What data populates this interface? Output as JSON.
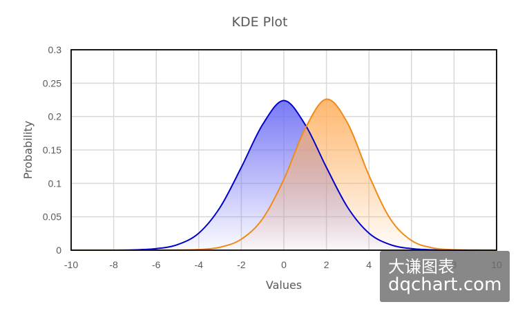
{
  "chart_data": {
    "type": "area",
    "title": "KDE Plot",
    "xlabel": "Values",
    "ylabel": "Probability",
    "xlim": [
      -10,
      10
    ],
    "ylim": [
      0,
      0.3
    ],
    "x_ticks": [
      "-10",
      "-8",
      "-6",
      "-4",
      "-2",
      "0",
      "2",
      "4",
      "6",
      "8",
      "10"
    ],
    "y_ticks": [
      "0",
      "0.05",
      "0.1",
      "0.15",
      "0.2",
      "0.25",
      "0.3"
    ],
    "grid": true,
    "legend": "none",
    "series": [
      {
        "color": "#0000cc",
        "fill_color": "#6b6bf5",
        "x": [
          -10,
          -9,
          -8,
          -7,
          -6,
          -5,
          -4,
          -3,
          -2,
          -1,
          0,
          1,
          2,
          3,
          4,
          5,
          6,
          7,
          8,
          9,
          10
        ],
        "y": [
          0.0,
          0.0,
          0.0,
          0.0005,
          0.0023,
          0.0083,
          0.0255,
          0.064,
          0.124,
          0.188,
          0.224,
          0.188,
          0.124,
          0.064,
          0.0255,
          0.0083,
          0.0023,
          0.0005,
          0.0,
          0.0,
          0.0
        ]
      },
      {
        "color": "#f08a18",
        "fill_color": "#ffb060",
        "x": [
          -10,
          -9,
          -8,
          -7,
          -6,
          -5,
          -4,
          -3,
          -2,
          -1,
          0,
          1,
          2,
          3,
          4,
          5,
          6,
          7,
          8,
          9,
          10
        ],
        "y": [
          0.0,
          0.0,
          0.0,
          0.0,
          0.0,
          0.0002,
          0.001,
          0.0044,
          0.0165,
          0.047,
          0.106,
          0.182,
          0.226,
          0.19,
          0.112,
          0.047,
          0.0145,
          0.0034,
          0.0006,
          0.0001,
          0.0
        ]
      }
    ]
  },
  "watermark": {
    "line1": "大谦图表",
    "line2": "dqchart.com"
  }
}
